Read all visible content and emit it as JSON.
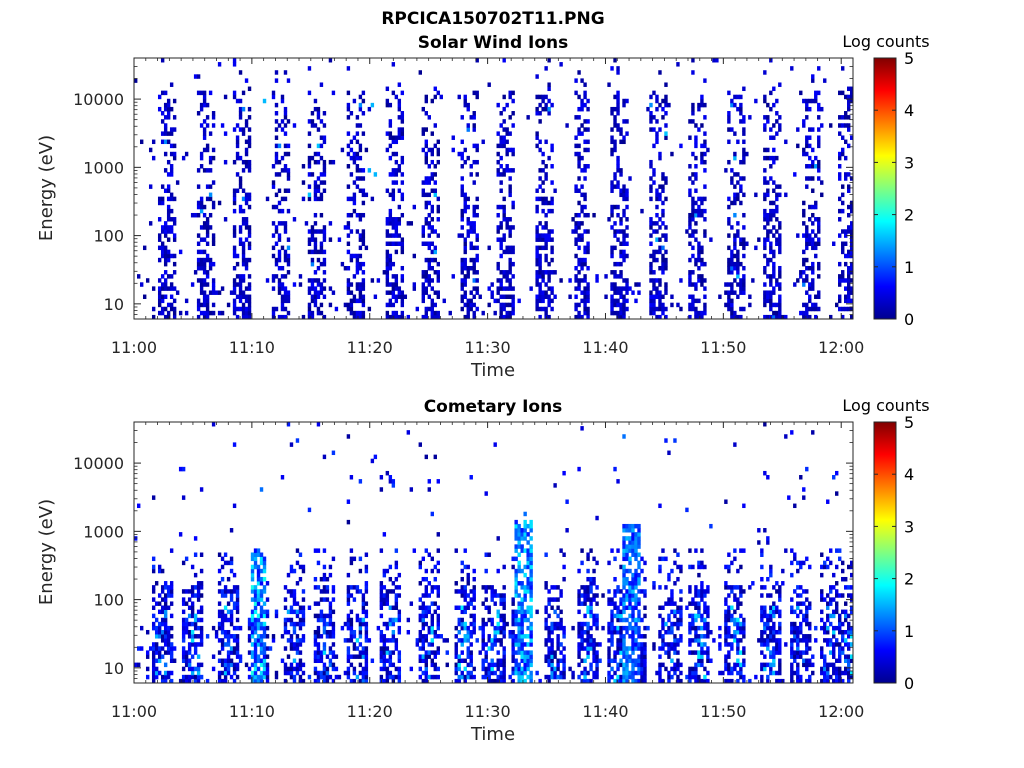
{
  "figure": {
    "title": "RPCICA150702T11.PNG"
  },
  "colorbar_stops": [
    "#00008f",
    "#0000ff",
    "#0080ff",
    "#00ffff",
    "#80ff80",
    "#ffff00",
    "#ff8000",
    "#ff0000",
    "#800000"
  ],
  "chart_data": [
    {
      "type": "heatmap",
      "title": "Solar Wind Ions",
      "xlabel": "Time",
      "ylabel": "Energy (eV)",
      "x_ticks": [
        "11:00",
        "11:10",
        "11:20",
        "11:30",
        "11:40",
        "11:50",
        "12:00"
      ],
      "x_range_minutes": [
        0,
        61
      ],
      "y_scale": "log",
      "y_ticks": [
        {
          "value": 10,
          "label": "10"
        },
        {
          "value": 100,
          "label": "100"
        },
        {
          "value": 1000,
          "label": "1000"
        },
        {
          "value": 10000,
          "label": "10000"
        }
      ],
      "y_range": [
        6,
        40000
      ],
      "colorbar": {
        "title": "Log counts",
        "range": [
          0,
          5
        ],
        "ticks": [
          "0",
          "1",
          "2",
          "3",
          "4",
          "5"
        ],
        "colormap": "jet"
      },
      "features": {
        "pattern": "sweep-bands",
        "band_centers_min": [
          2.7,
          6.0,
          9.2,
          12.4,
          15.6,
          18.8,
          22.0,
          25.2,
          28.4,
          31.6,
          34.9,
          38.0,
          41.2,
          44.5,
          47.7,
          51.0,
          54.2,
          57.4,
          60.6
        ],
        "typical_log_counts": [
          0,
          0.6
        ],
        "peak_log_counts": 1.6
      }
    },
    {
      "type": "heatmap",
      "title": "Cometary Ions",
      "xlabel": "Time",
      "ylabel": "Energy (eV)",
      "x_ticks": [
        "11:00",
        "11:10",
        "11:20",
        "11:30",
        "11:40",
        "11:50",
        "12:00"
      ],
      "x_range_minutes": [
        0,
        61
      ],
      "y_scale": "log",
      "y_ticks": [
        {
          "value": 10,
          "label": "10"
        },
        {
          "value": 100,
          "label": "100"
        },
        {
          "value": 1000,
          "label": "1000"
        },
        {
          "value": 10000,
          "label": "10000"
        }
      ],
      "y_range": [
        6,
        40000
      ],
      "colorbar": {
        "title": "Log counts",
        "range": [
          0,
          5
        ],
        "ticks": [
          "0",
          "1",
          "2",
          "3",
          "4",
          "5"
        ],
        "colormap": "jet"
      },
      "features": {
        "pattern": "low-energy-bursts",
        "burst_centers_min": [
          2.4,
          5.0,
          8.0,
          10.5,
          13.5,
          16.2,
          19.0,
          21.8,
          25.0,
          28.0,
          30.5,
          33.0,
          35.8,
          38.5,
          41.0,
          42.5,
          45.5,
          48.0,
          51.0,
          54.0,
          56.5,
          59.0,
          60.5
        ],
        "energy_range_eV": [
          6,
          600
        ],
        "bright_spikes": [
          {
            "minute": 10.5,
            "max_eV": 600,
            "peak_log_counts": 2.0
          },
          {
            "minute": 33.0,
            "max_eV": 1500,
            "peak_log_counts": 1.8
          },
          {
            "minute": 42.2,
            "max_eV": 1200,
            "peak_log_counts": 1.6
          }
        ],
        "peak_log_counts": 2.0
      }
    }
  ]
}
